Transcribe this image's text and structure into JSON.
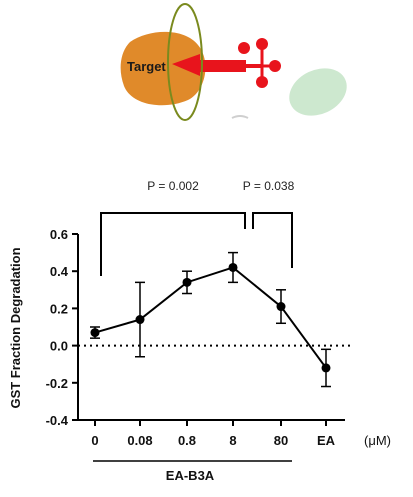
{
  "schematic": {
    "target_label": "Target",
    "colors": {
      "target": "#e08a2a",
      "ring": "#7a8a1e",
      "degrader": "#e8141c",
      "e3": "#cde8cf"
    }
  },
  "chart_data": {
    "type": "line",
    "categories": [
      "0",
      "0.08",
      "0.8",
      "8",
      "80",
      "EA"
    ],
    "values": [
      0.07,
      0.14,
      0.34,
      0.42,
      0.21,
      -0.12
    ],
    "error": [
      0.03,
      0.2,
      0.06,
      0.08,
      0.09,
      0.1
    ],
    "connected": [
      true,
      true,
      true,
      true,
      true,
      true
    ],
    "ylabel": "GST Fraction Degradation",
    "ylim": [
      -0.4,
      0.6
    ],
    "yticks": [
      "-0.4",
      "-0.2",
      "0.0",
      "0.2",
      "0.4",
      "0.6"
    ],
    "ytick_values": [
      -0.4,
      -0.2,
      0.0,
      0.2,
      0.4,
      0.6
    ],
    "unit_label": "(μM)",
    "group_label": "EA-B3A",
    "reference_line": 0.0,
    "comparisons": [
      {
        "from": "0",
        "to": "8",
        "label": "P = 0.002"
      },
      {
        "from": "8",
        "to": "80",
        "label": "P = 0.038"
      }
    ],
    "grid": false
  }
}
